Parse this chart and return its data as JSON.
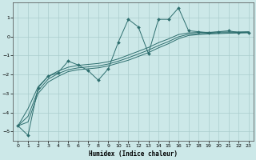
{
  "title": "",
  "xlabel": "Humidex (Indice chaleur)",
  "background_color": "#cce8e8",
  "grid_color": "#aacccc",
  "line_color": "#2d6e6e",
  "xlim": [
    -0.5,
    23.5
  ],
  "ylim": [
    -5.5,
    1.8
  ],
  "yticks": [
    -5,
    -4,
    -3,
    -2,
    -1,
    0,
    1
  ],
  "xticks": [
    0,
    1,
    2,
    3,
    4,
    5,
    6,
    7,
    8,
    9,
    10,
    11,
    12,
    13,
    14,
    15,
    16,
    17,
    18,
    19,
    20,
    21,
    22,
    23
  ],
  "series_main": {
    "x": [
      0,
      1,
      2,
      3,
      4,
      5,
      6,
      7,
      8,
      9,
      10,
      11,
      12,
      13,
      14,
      15,
      16,
      17,
      18,
      19,
      20,
      21,
      22,
      23
    ],
    "y": [
      -4.7,
      -5.2,
      -2.7,
      -2.1,
      -1.9,
      -1.3,
      -1.5,
      -1.8,
      -2.3,
      -1.7,
      -0.3,
      0.9,
      0.5,
      -0.9,
      0.9,
      0.9,
      1.5,
      0.3,
      0.25,
      0.2,
      0.25,
      0.3,
      0.2,
      0.2
    ]
  },
  "series_smooth": [
    [
      -4.7,
      -4.5,
      -3.0,
      -2.4,
      -2.1,
      -1.85,
      -1.75,
      -1.7,
      -1.65,
      -1.55,
      -1.4,
      -1.25,
      -1.05,
      -0.85,
      -0.6,
      -0.38,
      -0.12,
      0.05,
      0.1,
      0.13,
      0.15,
      0.17,
      0.18,
      0.2
    ],
    [
      -4.7,
      -4.2,
      -2.85,
      -2.25,
      -1.95,
      -1.75,
      -1.65,
      -1.6,
      -1.55,
      -1.45,
      -1.3,
      -1.12,
      -0.92,
      -0.72,
      -0.48,
      -0.27,
      -0.02,
      0.12,
      0.15,
      0.17,
      0.19,
      0.2,
      0.21,
      0.22
    ],
    [
      -4.7,
      -3.8,
      -2.65,
      -2.1,
      -1.82,
      -1.62,
      -1.52,
      -1.47,
      -1.42,
      -1.33,
      -1.18,
      -0.98,
      -0.78,
      -0.58,
      -0.33,
      -0.13,
      0.1,
      0.19,
      0.21,
      0.22,
      0.23,
      0.24,
      0.24,
      0.25
    ]
  ]
}
